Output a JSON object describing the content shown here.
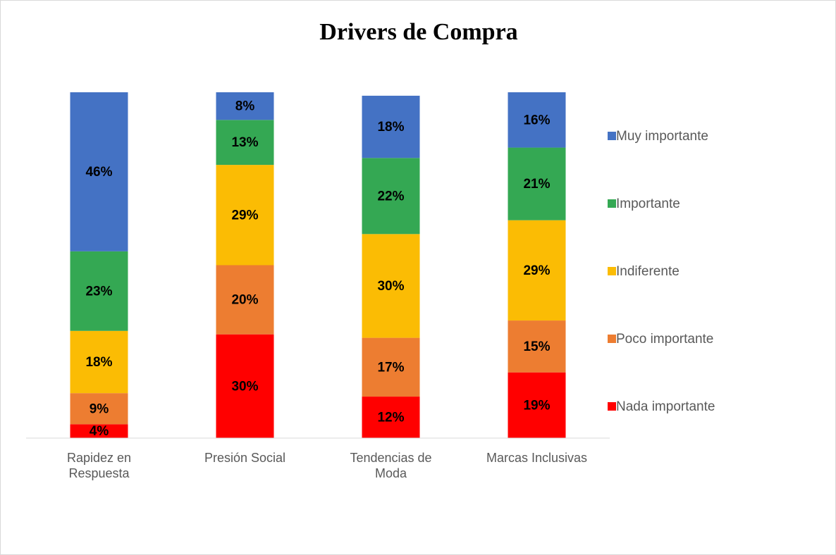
{
  "chart_data": {
    "type": "stacked_bar",
    "title": "Drivers de Compra",
    "categories": [
      "Rapidez en Respuesta",
      "Presión Social",
      "Tendencias de Moda",
      "Marcas Inclusivas"
    ],
    "series": [
      {
        "name": "Nada importante",
        "color": "#ff0000",
        "values": [
          4,
          30,
          12,
          19
        ],
        "value_labels": [
          "4%",
          "30%",
          "12%",
          "19%"
        ]
      },
      {
        "name": "Poco importante",
        "color": "#ed7d31",
        "values": [
          9,
          20,
          17,
          15
        ],
        "value_labels": [
          "9%",
          "20%",
          "17%",
          "15%"
        ]
      },
      {
        "name": "Indiferente",
        "color": "#fbbc04",
        "values": [
          18,
          29,
          30,
          29
        ],
        "value_labels": [
          "18%",
          "29%",
          "30%",
          "29%"
        ]
      },
      {
        "name": "Importante",
        "color": "#34a853",
        "values": [
          23,
          13,
          22,
          21
        ],
        "value_labels": [
          "23%",
          "13%",
          "22%",
          "21%"
        ]
      },
      {
        "name": "Muy importante",
        "color": "#4472c4",
        "values": [
          46,
          8,
          18,
          16
        ],
        "value_labels": [
          "46%",
          "8%",
          "18%",
          "16%"
        ]
      }
    ],
    "ylim": [
      0,
      100
    ],
    "legend": "right"
  }
}
